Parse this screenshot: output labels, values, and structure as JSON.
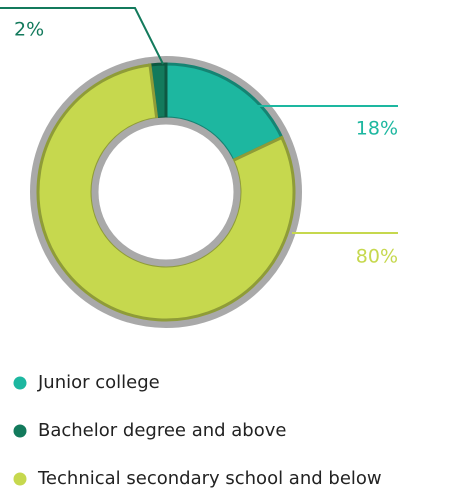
{
  "chart_data": {
    "type": "donut",
    "categories": [
      "Junior college",
      "Bachelor degree and above",
      "Technical secondary school and below"
    ],
    "values": [
      18,
      2,
      80
    ],
    "value_labels": [
      "18%",
      "2%",
      "80%"
    ],
    "colors": [
      "#1db7a0",
      "#137a5c",
      "#c6d84e"
    ]
  }
}
